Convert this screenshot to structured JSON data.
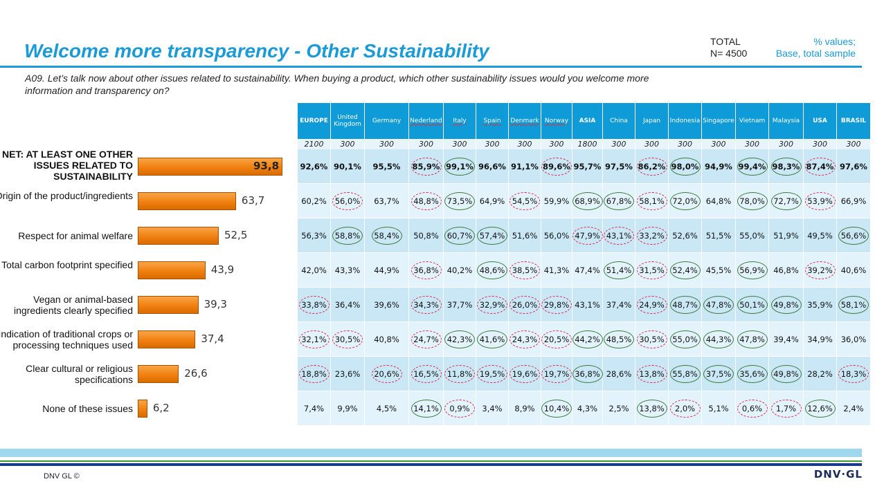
{
  "header": {
    "title": "Welcome more transparency  - Other Sustainability",
    "total_label": "TOTAL",
    "n_label": "N= 4500",
    "values_label": "% values;",
    "base_label": "Base, total sample"
  },
  "question": "A09. Let’s talk now about other issues related to sustainability. When buying a product, which other sustainability issues would you welcome more information and transparency on?",
  "colors": {
    "accent": "#1a9ad6",
    "bar": "#f08010",
    "header_bg": "#0f9ad8",
    "significant_high": "#3c7a3c",
    "significant_low": "#e0204a"
  },
  "chart_data": {
    "type": "bar",
    "orientation": "horizontal",
    "xlim": [
      0,
      100
    ],
    "categories": [
      "NET: AT LEAST ONE OTHER ISSUES RELATED TO SUSTAINABILITY",
      "Origin of the product/ingredients",
      "Respect for animal welfare",
      "Total carbon footprint specified",
      "Vegan or animal-based ingredients clearly specified",
      "Indication of traditional crops or processing techniques used",
      "Clear cultural or religious specifications",
      "None of these issues"
    ],
    "values": [
      93.8,
      63.7,
      52.5,
      43.9,
      39.3,
      37.4,
      26.6,
      6.2
    ],
    "value_labels": [
      "93,8",
      "63,7",
      "52,5",
      "43,9",
      "39,3",
      "37,4",
      "26,6",
      "6,2"
    ]
  },
  "table": {
    "columns": [
      {
        "label": "EUROPE",
        "n": "2100",
        "bold": true
      },
      {
        "label": "United Kingdom",
        "n": "300"
      },
      {
        "label": "Germany",
        "n": "300"
      },
      {
        "label": "Nederland",
        "n": "300",
        "spell": true
      },
      {
        "label": "Italy",
        "n": "300",
        "spell": true
      },
      {
        "label": "Spain",
        "n": "300",
        "spell": true
      },
      {
        "label": "Denmark",
        "n": "300",
        "spell": true
      },
      {
        "label": "Norway",
        "n": "300",
        "spell": true
      },
      {
        "label": "ASIA",
        "n": "1800",
        "bold": true
      },
      {
        "label": "China",
        "n": "300"
      },
      {
        "label": "Japan",
        "n": "300"
      },
      {
        "label": "Indonesia",
        "n": "300"
      },
      {
        "label": "Singapore",
        "n": "300"
      },
      {
        "label": "Vietnam",
        "n": "300"
      },
      {
        "label": "Malaysia",
        "n": "300"
      },
      {
        "label": "USA",
        "n": "300",
        "bold": true
      },
      {
        "label": "BRASIL",
        "n": "300",
        "bold": true
      }
    ],
    "rows": [
      {
        "values": [
          "92,6%",
          "90,1%",
          "95,5%",
          "85,9%",
          "99,1%",
          "96,6%",
          "91,1%",
          "89,6%",
          "95,7%",
          "97,5%",
          "86,2%",
          "98,0%",
          "94,9%",
          "99,4%",
          "98,3%",
          "87,4%",
          "97,6%"
        ],
        "marks": [
          "",
          "",
          "",
          "r",
          "g",
          "",
          "",
          "r",
          "",
          "",
          "r",
          "g",
          "",
          "g",
          "g",
          "r",
          ""
        ]
      },
      {
        "values": [
          "60,2%",
          "56,0%",
          "63,7%",
          "48,8%",
          "73,5%",
          "64,9%",
          "54,5%",
          "59,9%",
          "68,9%",
          "67,8%",
          "58,1%",
          "72,0%",
          "64,8%",
          "78,0%",
          "72,7%",
          "53,9%",
          "66,9%"
        ],
        "marks": [
          "",
          "r",
          "",
          "r",
          "g",
          "",
          "r",
          "",
          "g",
          "g",
          "r",
          "g",
          "",
          "g",
          "g",
          "r",
          ""
        ]
      },
      {
        "values": [
          "56,3%",
          "58,8%",
          "58,4%",
          "50,8%",
          "60,7%",
          "57,4%",
          "51,6%",
          "56,0%",
          "47,9%",
          "43,1%",
          "33,2%",
          "52,6%",
          "51,5%",
          "55,0%",
          "51,9%",
          "49,5%",
          "56,6%"
        ],
        "marks": [
          "",
          "g",
          "g",
          "",
          "g",
          "g",
          "",
          "",
          "r",
          "r",
          "r",
          "",
          "",
          "",
          "",
          "",
          "g"
        ]
      },
      {
        "values": [
          "42,0%",
          "43,3%",
          "44,9%",
          "36,8%",
          "40,2%",
          "48,6%",
          "38,5%",
          "41,3%",
          "47,4%",
          "51,4%",
          "31,5%",
          "52,4%",
          "45,5%",
          "56,9%",
          "46,8%",
          "39,2%",
          "40,6%"
        ],
        "marks": [
          "",
          "",
          "",
          "r",
          "",
          "g",
          "r",
          "",
          "",
          "g",
          "r",
          "g",
          "",
          "g",
          "",
          "r",
          ""
        ]
      },
      {
        "values": [
          "33,8%",
          "36,4%",
          "39,6%",
          "34,3%",
          "37,7%",
          "32,9%",
          "26,0%",
          "29,8%",
          "43,1%",
          "37,4%",
          "24,9%",
          "48,7%",
          "47,8%",
          "50,1%",
          "49,8%",
          "35,9%",
          "58,1%"
        ],
        "marks": [
          "r",
          "",
          "",
          "r",
          "",
          "r",
          "r",
          "r",
          "",
          "",
          "r",
          "g",
          "g",
          "g",
          "g",
          "",
          "g"
        ]
      },
      {
        "values": [
          "32,1%",
          "30,5%",
          "40,8%",
          "24,7%",
          "42,3%",
          "41,6%",
          "24,3%",
          "20,5%",
          "44,2%",
          "48,5%",
          "30,5%",
          "55,0%",
          "44,3%",
          "47,8%",
          "39,4%",
          "34,9%",
          "36,0%"
        ],
        "marks": [
          "r",
          "r",
          "",
          "r",
          "g",
          "g",
          "r",
          "r",
          "g",
          "g",
          "r",
          "g",
          "g",
          "g",
          "",
          "",
          ""
        ]
      },
      {
        "values": [
          "18,8%",
          "23,6%",
          "20,6%",
          "16,5%",
          "11,8%",
          "19,5%",
          "19,6%",
          "19,7%",
          "36,8%",
          "28,6%",
          "13,8%",
          "55,8%",
          "37,5%",
          "35,6%",
          "49,8%",
          "28,2%",
          "18,3%"
        ],
        "marks": [
          "r",
          "",
          "r",
          "r",
          "r",
          "r",
          "r",
          "r",
          "g",
          "",
          "r",
          "g",
          "g",
          "g",
          "g",
          "",
          "r"
        ]
      },
      {
        "values": [
          "7,4%",
          "9,9%",
          "4,5%",
          "14,1%",
          "0,9%",
          "3,4%",
          "8,9%",
          "10,4%",
          "4,3%",
          "2,5%",
          "13,8%",
          "2,0%",
          "5,1%",
          "0,6%",
          "1,7%",
          "12,6%",
          "2,4%"
        ],
        "marks": [
          "",
          "",
          "",
          "g",
          "r",
          "",
          "",
          "g",
          "",
          "",
          "g",
          "r",
          "",
          "r",
          "r",
          "g",
          ""
        ]
      }
    ]
  },
  "footer": {
    "copyright": "DNV GL ©",
    "logo": "DNV·GL"
  }
}
